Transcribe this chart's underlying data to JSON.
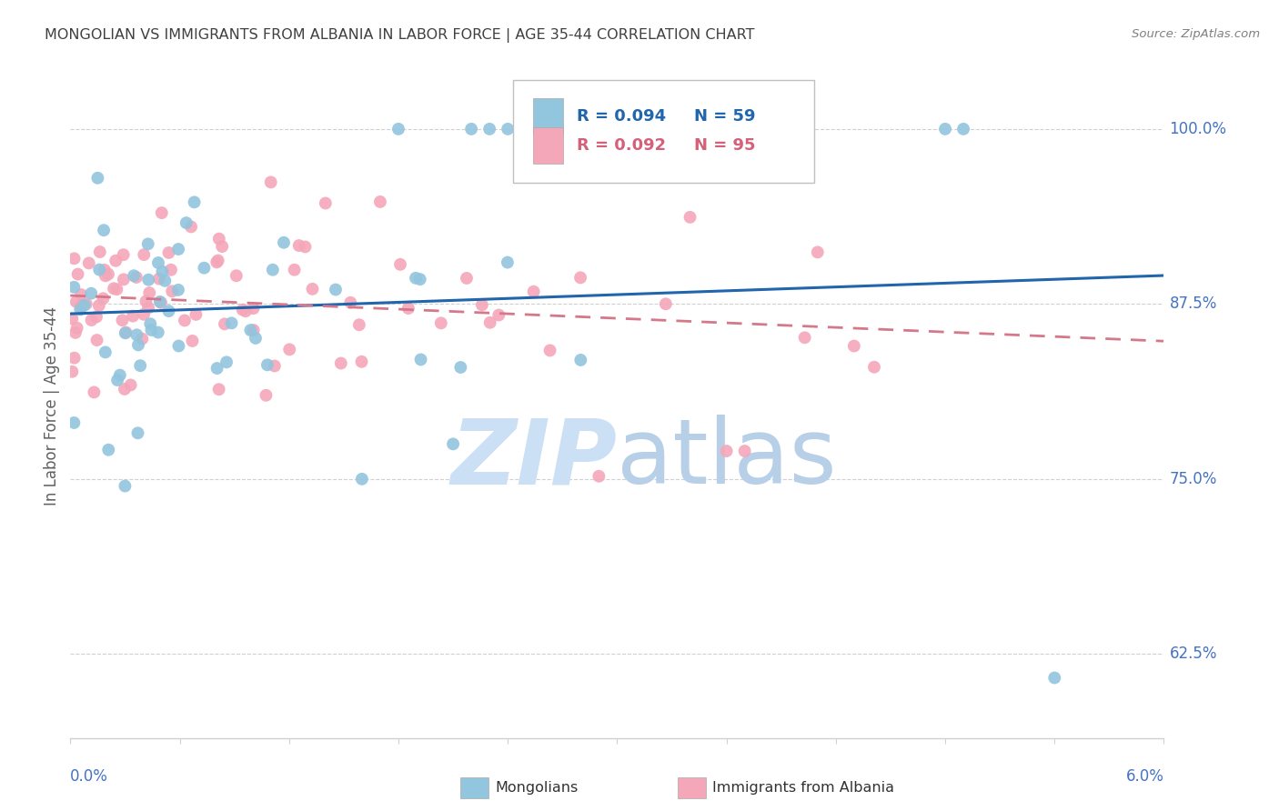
{
  "title": "MONGOLIAN VS IMMIGRANTS FROM ALBANIA IN LABOR FORCE | AGE 35-44 CORRELATION CHART",
  "source": "Source: ZipAtlas.com",
  "ylabel": "In Labor Force | Age 35-44",
  "yticks": [
    0.625,
    0.75,
    0.875,
    1.0
  ],
  "ytick_labels": [
    "62.5%",
    "75.0%",
    "87.5%",
    "100.0%"
  ],
  "xmin": 0.0,
  "xmax": 0.06,
  "ymin": 0.565,
  "ymax": 1.04,
  "blue_color": "#92c5de",
  "pink_color": "#f4a7b9",
  "blue_line_color": "#2166ac",
  "pink_line_color": "#d4788a",
  "axis_label_color": "#4472c4",
  "title_color": "#404040",
  "source_color": "#808080",
  "ylabel_color": "#606060",
  "watermark_color": "#cce0f5",
  "legend_label_blue": "Mongolians",
  "legend_label_pink": "Immigrants from Albania",
  "blue_r": "R = 0.094",
  "blue_n": "N = 59",
  "pink_r": "R = 0.092",
  "pink_n": "N = 95"
}
